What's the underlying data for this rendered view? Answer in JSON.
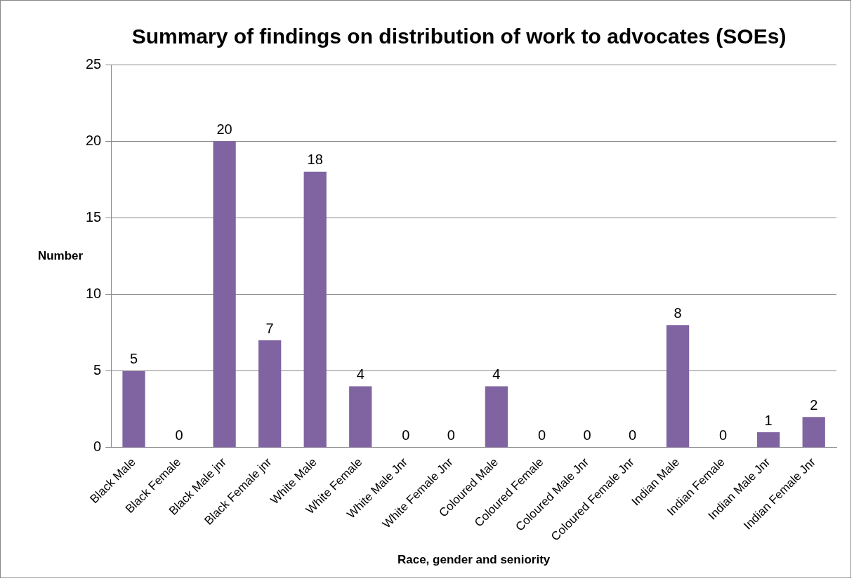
{
  "chart_data": {
    "type": "bar",
    "title": "Summary of findings on distribution of work to advocates (SOEs)",
    "xlabel": "Race, gender and seniority",
    "ylabel": "Number",
    "categories": [
      "Black Male",
      "Black Female",
      "Black Male jnr",
      "Black Female jnr",
      "White Male",
      "White Female",
      "White Male Jnr",
      "White Female Jnr",
      "Coloured Male",
      "Coloured Female",
      "Coloured Male Jnr",
      "Coloured Female Jnr",
      "Indian Male",
      "Indian Female",
      "Indian Male Jnr",
      "Indian Female Jnr"
    ],
    "values": [
      5,
      0,
      20,
      7,
      18,
      4,
      0,
      0,
      4,
      0,
      0,
      0,
      8,
      0,
      1,
      2
    ],
    "color": "#8064a2",
    "ylim": [
      0,
      25
    ],
    "yticks": [
      0,
      5,
      10,
      15,
      20,
      25
    ],
    "grid": "y",
    "data_labels": true,
    "legend": false
  }
}
